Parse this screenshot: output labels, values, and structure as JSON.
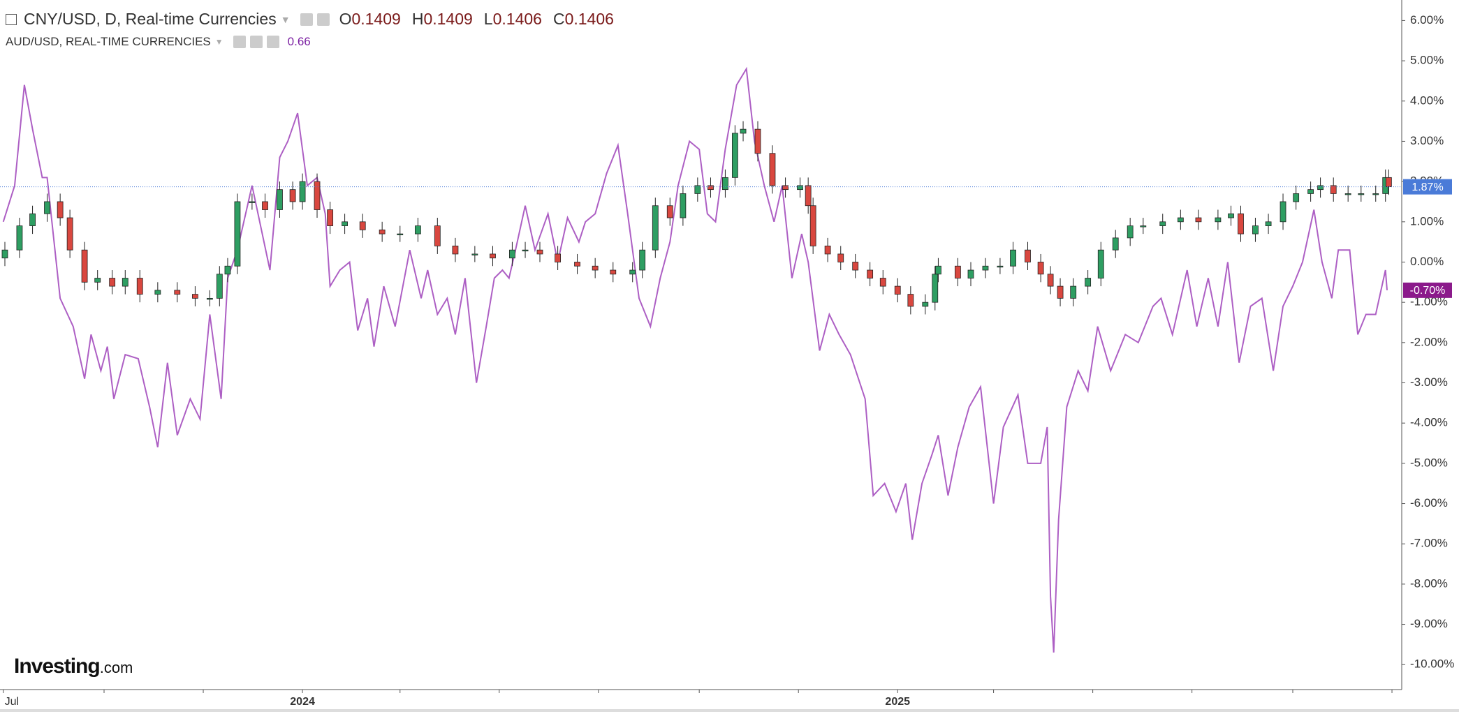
{
  "header": {
    "ohlc": [
      {
        "key": "O",
        "value": "0.1409"
      },
      {
        "key": "H",
        "value": "0.1409"
      },
      {
        "key": "L",
        "value": "0.1406"
      },
      {
        "key": "C",
        "value": "0.1406"
      }
    ],
    "compare_value": "0.66"
  },
  "logo": {
    "brand": "Investing",
    "suffix": ".com"
  },
  "chart_data": {
    "type": "candlestick",
    "xlim": [
      -2,
      860
    ],
    "xticks": [
      {
        "value": 0,
        "label": "Jul"
      },
      {
        "value": 184,
        "label": "2024"
      },
      {
        "value": 550,
        "label": "2025"
      }
    ],
    "xminor_ticks": [
      62,
      123,
      244,
      305,
      366,
      428,
      489,
      609,
      670,
      731,
      793,
      854
    ],
    "ylim": [
      -10.62,
      6.51
    ],
    "yticks": [
      {
        "value": 6,
        "label": "6.00%"
      },
      {
        "value": 5,
        "label": "5.00%"
      },
      {
        "value": 4,
        "label": "4.00%"
      },
      {
        "value": 3,
        "label": "3.00%"
      },
      {
        "value": 2,
        "label": "2.00%"
      },
      {
        "value": 1,
        "label": "1.00%"
      },
      {
        "value": 0,
        "label": "0.00%"
      },
      {
        "value": -1,
        "label": "-1.00%"
      },
      {
        "value": -2,
        "label": "-2.00%"
      },
      {
        "value": -3,
        "label": "-3.00%"
      },
      {
        "value": -4,
        "label": "-4.00%"
      },
      {
        "value": -5,
        "label": "-5.00%"
      },
      {
        "value": -6,
        "label": "-6.00%"
      },
      {
        "value": -7,
        "label": "-7.00%"
      },
      {
        "value": -8,
        "label": "-8.00%"
      },
      {
        "value": -9,
        "label": "-9.00%"
      },
      {
        "value": -10,
        "label": "-10.00%"
      }
    ],
    "series": [
      {
        "name": "CNY/USD, D, Real-time Currencies",
        "type": "candlestick",
        "up_color": "#2e9e62",
        "down_color": "#d9473f",
        "label_color": "#4a7bd8",
        "last_label": "1.87%",
        "x": [
          1,
          10,
          18,
          27,
          35,
          41,
          50,
          58,
          67,
          75,
          84,
          95,
          107,
          118,
          127,
          133,
          138,
          144,
          153,
          161,
          170,
          178,
          184,
          193,
          201,
          210,
          221,
          233,
          244,
          255,
          267,
          278,
          290,
          301,
          313,
          321,
          330,
          341,
          353,
          364,
          375,
          387,
          393,
          401,
          410,
          418,
          427,
          435,
          444,
          450,
          455,
          464,
          473,
          481,
          490,
          495,
          498,
          507,
          515,
          524,
          533,
          541,
          550,
          558,
          567,
          573,
          575,
          587,
          595,
          604,
          613,
          621,
          630,
          638,
          644,
          650,
          658,
          667,
          675,
          684,
          693,
          701,
          713,
          724,
          735,
          747,
          755,
          761,
          770,
          778,
          787,
          795,
          804,
          810,
          818,
          827,
          835,
          844,
          850,
          852
        ],
        "open": [
          0.1,
          0.3,
          0.9,
          1.2,
          1.5,
          1.1,
          0.3,
          -0.5,
          -0.4,
          -0.6,
          -0.4,
          -0.8,
          -0.7,
          -0.8,
          -0.9,
          -0.9,
          -0.3,
          -0.1,
          1.5,
          1.5,
          1.3,
          1.8,
          1.5,
          2.0,
          1.3,
          0.9,
          1.0,
          0.8,
          0.7,
          0.7,
          0.9,
          0.4,
          0.2,
          0.2,
          0.1,
          0.3,
          0.3,
          0.2,
          0.0,
          -0.1,
          -0.2,
          -0.3,
          -0.2,
          0.3,
          1.4,
          1.1,
          1.7,
          1.9,
          1.8,
          2.1,
          3.2,
          3.3,
          2.7,
          1.9,
          1.8,
          1.9,
          1.4,
          0.4,
          0.2,
          0.0,
          -0.2,
          -0.4,
          -0.6,
          -0.8,
          -1.1,
          -1.0,
          -0.3,
          -0.1,
          -0.4,
          -0.2,
          -0.1,
          -0.1,
          0.3,
          0.0,
          -0.3,
          -0.6,
          -0.9,
          -0.6,
          -0.4,
          0.3,
          0.6,
          0.9,
          0.9,
          1.0,
          1.1,
          1.0,
          1.1,
          1.2,
          0.7,
          0.9,
          1.0,
          1.5,
          1.7,
          1.8,
          1.9,
          1.7,
          1.7,
          1.7,
          1.7,
          2.1
        ],
        "high": [
          0.5,
          1.1,
          1.4,
          1.7,
          1.7,
          1.3,
          0.5,
          -0.2,
          -0.2,
          -0.2,
          -0.2,
          -0.5,
          -0.5,
          -0.6,
          -0.7,
          -0.1,
          0.1,
          1.7,
          1.7,
          1.7,
          2.0,
          2.0,
          2.2,
          2.2,
          1.5,
          1.2,
          1.2,
          1.0,
          0.9,
          1.1,
          1.1,
          0.6,
          0.4,
          0.4,
          0.5,
          0.5,
          0.5,
          0.4,
          0.2,
          0.1,
          0.0,
          0.0,
          0.5,
          1.6,
          1.6,
          1.9,
          2.1,
          2.1,
          2.3,
          3.4,
          3.5,
          3.5,
          2.9,
          2.1,
          2.1,
          2.1,
          1.6,
          0.6,
          0.4,
          0.2,
          0.0,
          -0.2,
          -0.4,
          -0.6,
          -0.8,
          -0.1,
          0.1,
          0.1,
          0.0,
          0.1,
          0.1,
          0.5,
          0.5,
          0.2,
          -0.1,
          -0.4,
          -0.4,
          -0.2,
          0.5,
          0.8,
          1.1,
          1.1,
          1.2,
          1.3,
          1.3,
          1.3,
          1.4,
          1.4,
          1.1,
          1.2,
          1.7,
          1.9,
          2.0,
          2.1,
          2.1,
          1.9,
          1.9,
          1.9,
          2.3,
          2.3
        ],
        "low": [
          -0.1,
          0.1,
          0.7,
          1.0,
          0.9,
          0.1,
          -0.7,
          -0.7,
          -0.8,
          -0.8,
          -1.0,
          -1.0,
          -1.0,
          -1.1,
          -1.1,
          -1.1,
          -0.5,
          -0.3,
          1.3,
          1.1,
          1.1,
          1.3,
          1.3,
          1.1,
          0.7,
          0.7,
          0.6,
          0.5,
          0.5,
          0.5,
          0.2,
          0.0,
          0.0,
          -0.1,
          -0.1,
          0.1,
          0.0,
          -0.2,
          -0.3,
          -0.4,
          -0.5,
          -0.5,
          -0.4,
          0.1,
          0.9,
          0.9,
          1.5,
          1.6,
          1.6,
          1.9,
          3.0,
          2.5,
          1.7,
          1.6,
          1.6,
          1.2,
          0.2,
          0.0,
          -0.2,
          -0.4,
          -0.6,
          -0.8,
          -1.0,
          -1.3,
          -1.3,
          -1.2,
          -0.5,
          -0.6,
          -0.6,
          -0.4,
          -0.3,
          -0.3,
          -0.2,
          -0.5,
          -0.8,
          -1.1,
          -1.1,
          -0.8,
          -0.6,
          0.1,
          0.4,
          0.7,
          0.7,
          0.8,
          0.8,
          0.8,
          0.9,
          0.5,
          0.5,
          0.7,
          0.8,
          1.3,
          1.5,
          1.6,
          1.5,
          1.5,
          1.5,
          1.5,
          1.5,
          1.67
        ],
        "close": [
          0.3,
          0.9,
          1.2,
          1.5,
          1.1,
          0.3,
          -0.5,
          -0.4,
          -0.6,
          -0.4,
          -0.8,
          -0.7,
          -0.8,
          -0.9,
          -0.9,
          -0.3,
          -0.1,
          1.5,
          1.5,
          1.3,
          1.8,
          1.5,
          2.0,
          1.3,
          0.9,
          1.0,
          0.8,
          0.7,
          0.7,
          0.9,
          0.4,
          0.2,
          0.2,
          0.1,
          0.3,
          0.3,
          0.2,
          0.0,
          -0.1,
          -0.2,
          -0.3,
          -0.2,
          0.3,
          1.4,
          1.1,
          1.7,
          1.9,
          1.8,
          2.1,
          3.2,
          3.3,
          2.7,
          1.9,
          1.8,
          1.9,
          1.4,
          0.4,
          0.2,
          0.0,
          -0.2,
          -0.4,
          -0.6,
          -0.8,
          -1.1,
          -1.0,
          -0.3,
          -0.1,
          -0.4,
          -0.2,
          -0.1,
          -0.1,
          0.3,
          0.0,
          -0.3,
          -0.6,
          -0.9,
          -0.6,
          -0.4,
          0.3,
          0.6,
          0.9,
          0.9,
          1.0,
          1.1,
          1.0,
          1.1,
          1.2,
          0.7,
          0.9,
          1.0,
          1.5,
          1.7,
          1.8,
          1.9,
          1.7,
          1.7,
          1.7,
          1.7,
          2.1,
          1.87
        ]
      },
      {
        "name": "AUD/USD, REAL-TIME CURRENCIES",
        "type": "line",
        "color": "#ad5fc4",
        "label_color": "#8b1a8b",
        "last_label": "-0.70%",
        "x": [
          0,
          7,
          13,
          18,
          24,
          27,
          35,
          43,
          50,
          54,
          60,
          64,
          68,
          75,
          83,
          90,
          95,
          101,
          107,
          115,
          121,
          127,
          134,
          138,
          144,
          153,
          164,
          170,
          175,
          181,
          187,
          193,
          198,
          201,
          207,
          213,
          218,
          224,
          228,
          234,
          241,
          250,
          257,
          261,
          267,
          273,
          278,
          284,
          291,
          297,
          302,
          307,
          311,
          315,
          321,
          327,
          335,
          341,
          347,
          354,
          358,
          364,
          371,
          378,
          384,
          391,
          398,
          404,
          410,
          415,
          422,
          428,
          433,
          438,
          444,
          451,
          457,
          462,
          468,
          474,
          479,
          485,
          491,
          495,
          502,
          508,
          514,
          521,
          530,
          535,
          542,
          549,
          555,
          559,
          565,
          571,
          575,
          581,
          587,
          594,
          601,
          609,
          615,
          624,
          630,
          638,
          642,
          644,
          646,
          649,
          654,
          661,
          667,
          673,
          681,
          690,
          698,
          707,
          712,
          719,
          728,
          734,
          741,
          747,
          753,
          760,
          767,
          774,
          781,
          787,
          793,
          799,
          806,
          811,
          817,
          821,
          828,
          833,
          838,
          844,
          850,
          851
        ],
        "values": [
          1.0,
          1.9,
          4.4,
          3.3,
          2.1,
          2.1,
          -0.9,
          -1.6,
          -2.9,
          -1.8,
          -2.7,
          -2.1,
          -3.4,
          -2.3,
          -2.4,
          -3.6,
          -4.6,
          -2.5,
          -4.3,
          -3.4,
          -3.9,
          -1.3,
          -3.4,
          -0.4,
          0.3,
          1.9,
          -0.2,
          2.6,
          3.0,
          3.7,
          1.9,
          2.1,
          1.2,
          -0.6,
          -0.2,
          0.0,
          -1.7,
          -0.9,
          -2.1,
          -0.6,
          -1.6,
          0.3,
          -0.9,
          -0.2,
          -1.3,
          -0.9,
          -1.8,
          -0.4,
          -3.0,
          -1.6,
          -0.4,
          -0.2,
          -0.4,
          0.3,
          1.4,
          0.3,
          1.2,
          0.0,
          1.1,
          0.5,
          1.0,
          1.2,
          2.2,
          2.9,
          1.2,
          -0.9,
          -1.6,
          -0.4,
          0.5,
          1.9,
          3.0,
          2.8,
          1.2,
          1.0,
          2.8,
          4.4,
          4.8,
          3.0,
          1.9,
          1.0,
          1.9,
          -0.4,
          0.7,
          0.0,
          -2.2,
          -1.3,
          -1.8,
          -2.3,
          -3.4,
          -5.8,
          -5.5,
          -6.2,
          -5.5,
          -6.9,
          -5.5,
          -4.8,
          -4.3,
          -5.8,
          -4.6,
          -3.6,
          -3.1,
          -6.0,
          -4.1,
          -3.3,
          -5.0,
          -5.0,
          -4.1,
          -8.3,
          -9.7,
          -6.4,
          -3.6,
          -2.7,
          -3.2,
          -1.6,
          -2.7,
          -1.8,
          -2.0,
          -1.1,
          -0.9,
          -1.8,
          -0.2,
          -1.6,
          -0.4,
          -1.6,
          0.0,
          -2.5,
          -1.1,
          -0.9,
          -2.7,
          -1.1,
          -0.6,
          0.0,
          1.3,
          0.0,
          -0.9,
          0.3,
          0.3,
          -1.8,
          -1.3,
          -1.3,
          -0.2,
          -0.7
        ]
      }
    ]
  }
}
